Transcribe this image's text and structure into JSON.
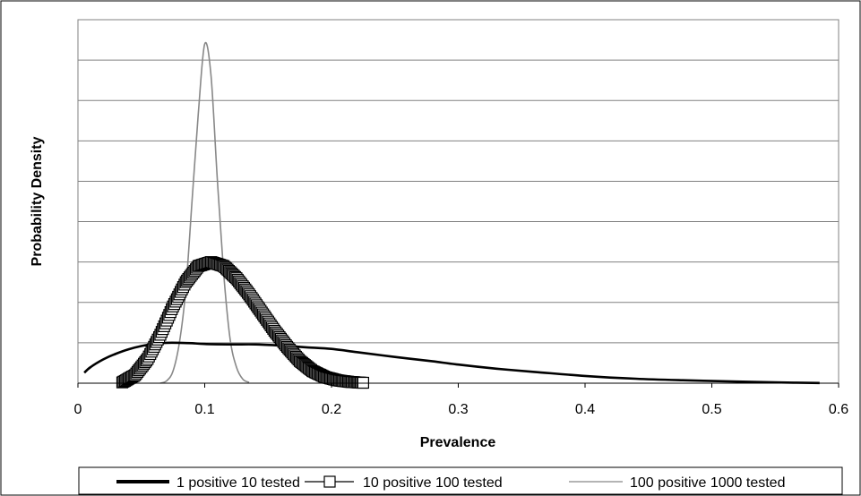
{
  "chart_data": {
    "type": "line",
    "title": "",
    "xlabel": "Prevalence",
    "ylabel": "Probability Density",
    "xlim": [
      0,
      0.6
    ],
    "x_ticks": [
      "0",
      "0.1",
      "0.2",
      "0.3",
      "0.4",
      "0.5",
      "0.6"
    ],
    "y_ticks_labeled": false,
    "y_gridlines": 9,
    "grid": true,
    "legend_position": "bottom",
    "series": [
      {
        "name": "1 positive 10 tested",
        "color": "#000000",
        "style": "thick-line",
        "x": [
          0.005,
          0.01,
          0.02,
          0.03,
          0.04,
          0.05,
          0.06,
          0.07,
          0.08,
          0.09,
          0.1,
          0.12,
          0.14,
          0.16,
          0.18,
          0.2,
          0.22,
          0.25,
          0.28,
          0.3,
          0.33,
          0.36,
          0.4,
          0.44,
          0.48,
          0.52,
          0.55,
          0.585
        ],
        "y": [
          0.26,
          0.4,
          0.59,
          0.73,
          0.84,
          0.92,
          0.97,
          1.0,
          1.0,
          0.99,
          0.97,
          0.96,
          0.96,
          0.93,
          0.89,
          0.85,
          0.77,
          0.65,
          0.54,
          0.46,
          0.36,
          0.28,
          0.18,
          0.11,
          0.07,
          0.04,
          0.02,
          0.005
        ]
      },
      {
        "name": "10 positive 100 tested",
        "color": "#000000",
        "style": "line-square-markers",
        "x": [
          0.035,
          0.045,
          0.055,
          0.065,
          0.075,
          0.085,
          0.095,
          0.105,
          0.115,
          0.125,
          0.135,
          0.145,
          0.155,
          0.165,
          0.175,
          0.185,
          0.195,
          0.205,
          0.215,
          0.225
        ],
        "y": [
          0.02,
          0.2,
          0.6,
          1.2,
          1.9,
          2.5,
          2.9,
          3.0,
          2.9,
          2.6,
          2.2,
          1.75,
          1.3,
          0.9,
          0.55,
          0.3,
          0.15,
          0.07,
          0.03,
          0.01
        ]
      },
      {
        "name": "100 positive 1000 tested",
        "color": "#888888",
        "style": "thin-line",
        "x": [
          0.065,
          0.07,
          0.075,
          0.08,
          0.085,
          0.09,
          0.095,
          0.1,
          0.105,
          0.11,
          0.115,
          0.12,
          0.125,
          0.13,
          0.135
        ],
        "y": [
          0.0,
          0.06,
          0.3,
          1.0,
          2.3,
          4.5,
          6.7,
          8.4,
          7.6,
          5.0,
          2.7,
          1.1,
          0.4,
          0.1,
          0.02
        ]
      }
    ]
  }
}
